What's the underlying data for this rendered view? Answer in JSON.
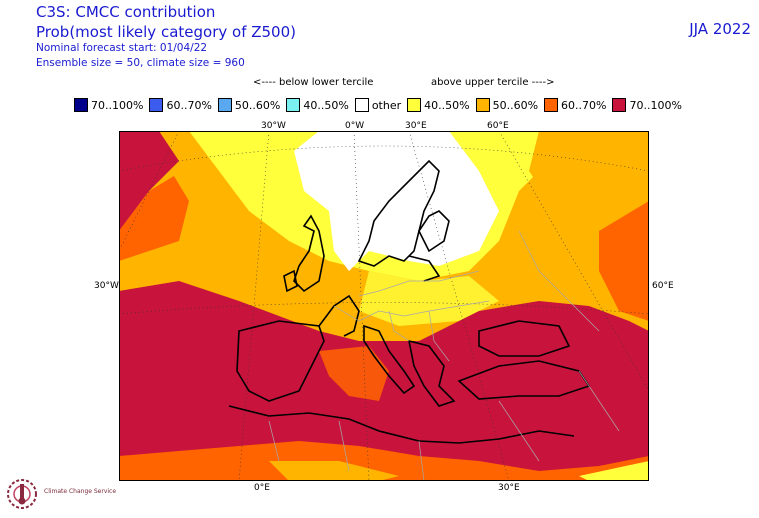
{
  "header": {
    "title": "C3S: CMCC contribution",
    "subtitle": "Prob(most likely category of Z500)",
    "forecast_start": "Nominal forecast start: 01/04/22",
    "ensemble": "Ensemble size = 50, climate size = 960",
    "season": "JJA 2022"
  },
  "legend": {
    "below_caption": "<---- below lower tercile",
    "above_caption": "above upper tercile ---->",
    "items": [
      {
        "label": "70..100%",
        "color": "#00008c"
      },
      {
        "label": "60..70%",
        "color": "#3c5cf0"
      },
      {
        "label": "50..60%",
        "color": "#5aa8f0"
      },
      {
        "label": "40..50%",
        "color": "#7af0f0"
      },
      {
        "label": "other",
        "color": "#ffffff"
      },
      {
        "label": "40..50%",
        "color": "#ffff3c"
      },
      {
        "label": "50..60%",
        "color": "#ffb400"
      },
      {
        "label": "60..70%",
        "color": "#ff6400"
      },
      {
        "label": "70..100%",
        "color": "#c8143c"
      }
    ]
  },
  "map": {
    "top_labels": [
      "30°W",
      "0°W",
      "30°E",
      "60°E"
    ],
    "left_label": "30°W",
    "right_label": "60°E",
    "bottom_labels": [
      "0°E",
      "30°E"
    ]
  },
  "logo": {
    "name": "Climate Change Service"
  }
}
